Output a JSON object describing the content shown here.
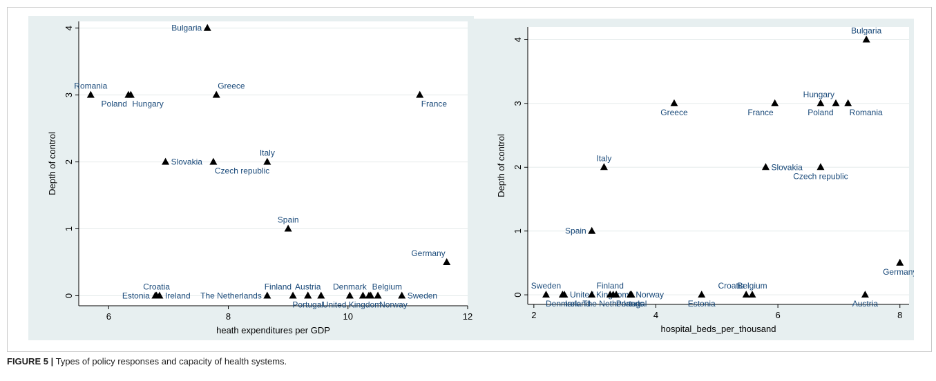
{
  "caption": {
    "label": "FIGURE 5 |",
    "text": "Types of policy responses and capacity of health systems."
  },
  "colors": {
    "panel_bg": "#e7eff0",
    "plot_bg": "#ffffff",
    "marker": "#000000",
    "label": "#1a4a7a",
    "grid": "#e4eaea"
  },
  "chart_data": [
    {
      "type": "scatter",
      "xlabel": "heath expenditures per GDP",
      "ylabel": "Depth of control",
      "xlim": [
        5.5,
        12
      ],
      "ylim": [
        -0.15,
        4.1
      ],
      "xticks": [
        6,
        8,
        10,
        12
      ],
      "yticks": [
        0,
        1,
        2,
        3,
        4
      ],
      "grid": true,
      "marker": "triangle",
      "points": [
        {
          "label": "Bulgaria",
          "x": 7.65,
          "y": 4,
          "pos": "left"
        },
        {
          "label": "Romania",
          "x": 5.7,
          "y": 3,
          "pos": "above"
        },
        {
          "label": "Poland",
          "x": 6.33,
          "y": 3,
          "pos": "below-left"
        },
        {
          "label": "Hungary",
          "x": 6.37,
          "y": 3,
          "pos": "below-right"
        },
        {
          "label": "Greece",
          "x": 7.8,
          "y": 3,
          "pos": "above-right"
        },
        {
          "label": "France",
          "x": 11.2,
          "y": 3,
          "pos": "below-right"
        },
        {
          "label": "Slovakia",
          "x": 6.95,
          "y": 2,
          "pos": "right"
        },
        {
          "label": "Czech republic",
          "x": 7.75,
          "y": 2,
          "pos": "below-right"
        },
        {
          "label": "Italy",
          "x": 8.65,
          "y": 2,
          "pos": "above"
        },
        {
          "label": "Spain",
          "x": 9,
          "y": 1,
          "pos": "above"
        },
        {
          "label": "Germany",
          "x": 11.65,
          "y": 0.5,
          "pos": "above-left"
        },
        {
          "label": "Croatia",
          "x": 6.8,
          "y": 0,
          "pos": "above"
        },
        {
          "label": "Estonia",
          "x": 6.78,
          "y": 0,
          "pos": "left"
        },
        {
          "label": "Ireland",
          "x": 6.85,
          "y": 0,
          "pos": "right"
        },
        {
          "label": "The Netherlands",
          "x": 8.65,
          "y": 0,
          "pos": "left"
        },
        {
          "label": "Finland",
          "x": 9.08,
          "y": 0,
          "pos": "above-left"
        },
        {
          "label": "Austria",
          "x": 9.33,
          "y": 0,
          "pos": "above"
        },
        {
          "label": "Portugal",
          "x": 9.33,
          "y": 0,
          "pos": "below"
        },
        {
          "label": "United Kingdom",
          "x": 9.55,
          "y": 0,
          "pos": "below-right"
        },
        {
          "label": "Denmark",
          "x": 10.03,
          "y": 0,
          "pos": "above"
        },
        {
          "label": "Belgium",
          "x": 10.38,
          "y": 0,
          "pos": "above-right"
        },
        {
          "label": "Norway",
          "x": 10.5,
          "y": 0,
          "pos": "below-right"
        },
        {
          "label": "Sweden",
          "x": 10.9,
          "y": 0,
          "pos": "right"
        },
        {
          "label": "",
          "x": 10.25,
          "y": 0,
          "pos": "none"
        },
        {
          "label": "",
          "x": 10.35,
          "y": 0,
          "pos": "none"
        }
      ]
    },
    {
      "type": "scatter",
      "xlabel": "hospital_beds_per_thousand",
      "ylabel": "Depth of control",
      "xlim": [
        1.9,
        8.15
      ],
      "ylim": [
        -0.15,
        4.2
      ],
      "xticks": [
        2,
        4,
        6,
        8
      ],
      "yticks": [
        0,
        1,
        2,
        3,
        4
      ],
      "grid": true,
      "marker": "triangle",
      "points": [
        {
          "label": "Bulgaria",
          "x": 7.45,
          "y": 4,
          "pos": "above"
        },
        {
          "label": "Greece",
          "x": 4.3,
          "y": 3,
          "pos": "below"
        },
        {
          "label": "France",
          "x": 5.95,
          "y": 3,
          "pos": "below-left"
        },
        {
          "label": "Hungary",
          "x": 6.95,
          "y": 3,
          "pos": "above-left"
        },
        {
          "label": "Poland",
          "x": 6.7,
          "y": 3,
          "pos": "below"
        },
        {
          "label": "Romania",
          "x": 7.15,
          "y": 3,
          "pos": "below-right"
        },
        {
          "label": "Italy",
          "x": 3.15,
          "y": 2,
          "pos": "above"
        },
        {
          "label": "Slovakia",
          "x": 5.8,
          "y": 2,
          "pos": "right"
        },
        {
          "label": "Czech republic",
          "x": 6.7,
          "y": 2,
          "pos": "below"
        },
        {
          "label": "Spain",
          "x": 2.95,
          "y": 1,
          "pos": "left"
        },
        {
          "label": "Germany",
          "x": 8,
          "y": 0.5,
          "pos": "below"
        },
        {
          "label": "Sweden",
          "x": 2.2,
          "y": 0,
          "pos": "above"
        },
        {
          "label": "Denmark",
          "x": 2.47,
          "y": 0,
          "pos": "below"
        },
        {
          "label": "United Kingdom",
          "x": 2.5,
          "y": 0,
          "pos": "right"
        },
        {
          "label": "Ireland",
          "x": 2.95,
          "y": 0,
          "pos": "below-left"
        },
        {
          "label": "The Netherlands",
          "x": 3.3,
          "y": 0,
          "pos": "below"
        },
        {
          "label": "Finland",
          "x": 3.25,
          "y": 0,
          "pos": "above"
        },
        {
          "label": "Portugal",
          "x": 3.6,
          "y": 0,
          "pos": "below"
        },
        {
          "label": "Norway",
          "x": 3.58,
          "y": 0,
          "pos": "right"
        },
        {
          "label": "Estonia",
          "x": 4.75,
          "y": 0,
          "pos": "below"
        },
        {
          "label": "Croatia",
          "x": 5.48,
          "y": 0,
          "pos": "above-left"
        },
        {
          "label": "Belgium",
          "x": 5.58,
          "y": 0,
          "pos": "above"
        },
        {
          "label": "Austria",
          "x": 7.43,
          "y": 0,
          "pos": "below"
        },
        {
          "label": "",
          "x": 3.35,
          "y": 0,
          "pos": "none"
        }
      ]
    }
  ]
}
